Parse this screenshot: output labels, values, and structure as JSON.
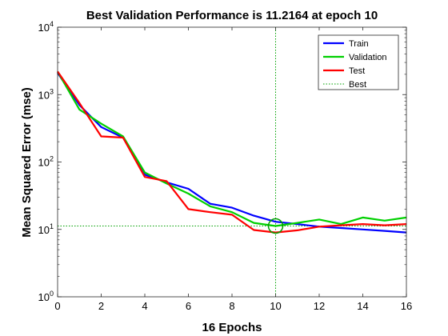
{
  "chart_data": {
    "type": "line",
    "title": "Best Validation Performance is 11.2164 at epoch 10",
    "xlabel": "16 Epochs",
    "ylabel": "Mean Squared Error  (mse)",
    "yscale": "log",
    "xlim": [
      0,
      16
    ],
    "ylim": [
      1,
      10000
    ],
    "x_ticks": [
      0,
      2,
      4,
      6,
      8,
      10,
      12,
      14,
      16
    ],
    "y_ticks": [
      {
        "base": "10",
        "exp": "0",
        "value": 1
      },
      {
        "base": "10",
        "exp": "1",
        "value": 10
      },
      {
        "base": "10",
        "exp": "2",
        "value": 100
      },
      {
        "base": "10",
        "exp": "3",
        "value": 1000
      },
      {
        "base": "10",
        "exp": "4",
        "value": 10000
      }
    ],
    "grid": false,
    "legend_position": "top-right",
    "x": [
      0,
      1,
      2,
      3,
      4,
      5,
      6,
      7,
      8,
      9,
      10,
      11,
      12,
      13,
      14,
      15,
      16
    ],
    "series": [
      {
        "name": "Train",
        "color": "#0000ff",
        "values": [
          2100,
          700,
          330,
          230,
          65,
          50,
          40,
          24,
          21,
          16,
          13,
          12,
          11,
          10.5,
          10,
          9.5,
          9
        ]
      },
      {
        "name": "Validation",
        "color": "#00d000",
        "values": [
          2200,
          600,
          370,
          240,
          70,
          48,
          34,
          22,
          18,
          12.5,
          11.2164,
          12.5,
          14,
          12,
          15,
          13.5,
          15
        ]
      },
      {
        "name": "Test",
        "color": "#ff0000",
        "values": [
          2200,
          750,
          240,
          230,
          60,
          52,
          20,
          18,
          16.5,
          9.8,
          9.0,
          9.7,
          11,
          11.5,
          12,
          11.5,
          12
        ]
      }
    ],
    "best": {
      "name": "Best",
      "epoch": 10,
      "value": 11.2164,
      "color": "#00a000"
    }
  }
}
